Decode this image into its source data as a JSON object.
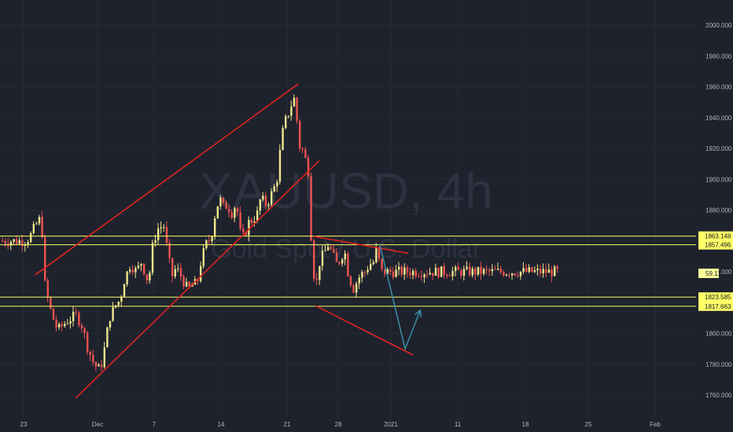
{
  "watermark": {
    "symbol": "XAUUSD, 4h",
    "description": "Gold Spot / U.S. Dollar"
  },
  "colors": {
    "background": "#1e222d",
    "grid": "#262a35",
    "up": "#f0e68c",
    "down": "#ef5350",
    "trendline": "#e0241e",
    "level": "#ffff66",
    "projection": "#3a8fa8",
    "axis_text": "#b2b5be",
    "current_price": "#ffff99"
  },
  "chart_data": {
    "type": "candlestick",
    "title": "",
    "y_axis": {
      "min": 1750,
      "max": 2010,
      "position": "right",
      "ticks": [
        "1760.000",
        "1780.000",
        "1800.000",
        "1820.000",
        "1840.000",
        "1860.000",
        "1880.000",
        "1900.000",
        "1920.000",
        "1940.000",
        "1960.000",
        "1980.000",
        "2000.000"
      ]
    },
    "x_axis": {
      "ticks": [
        "23",
        "Dec",
        "7",
        "14",
        "21",
        "28",
        "2021",
        "11",
        "18",
        "25",
        "Feb"
      ]
    },
    "grid": true,
    "horizontal_levels": [
      {
        "value": 1863.148,
        "label": "1863.148"
      },
      {
        "value": 1857.496,
        "label": "1857.496"
      },
      {
        "value": 1823.585,
        "label": "1823.585"
      },
      {
        "value": 1817.663,
        "label": "1817.663"
      }
    ],
    "current_price_tag": "59.11",
    "current_price_value": 1839,
    "price_path": [
      [
        0,
        1860
      ],
      [
        0.08,
        1862
      ],
      [
        0.18,
        1870
      ],
      [
        0.25,
        1874
      ],
      [
        0.29,
        1866
      ],
      [
        0.34,
        1830
      ],
      [
        0.45,
        1812
      ],
      [
        0.55,
        1802
      ],
      [
        0.7,
        1808
      ],
      [
        0.85,
        1812
      ],
      [
        0.95,
        1805
      ],
      [
        1.05,
        1790
      ],
      [
        1.15,
        1780
      ],
      [
        1.25,
        1776
      ],
      [
        1.32,
        1790
      ],
      [
        1.4,
        1810
      ],
      [
        1.5,
        1818
      ],
      [
        1.58,
        1822
      ],
      [
        1.65,
        1835
      ],
      [
        1.75,
        1845
      ],
      [
        1.85,
        1840
      ],
      [
        1.95,
        1848
      ],
      [
        2.0,
        1834
      ],
      [
        2.07,
        1840
      ],
      [
        2.12,
        1858
      ],
      [
        2.2,
        1868
      ],
      [
        2.3,
        1870
      ],
      [
        2.38,
        1848
      ],
      [
        2.45,
        1836
      ],
      [
        2.5,
        1843
      ],
      [
        2.6,
        1836
      ],
      [
        2.7,
        1828
      ],
      [
        2.78,
        1832
      ],
      [
        2.85,
        1832
      ],
      [
        2.92,
        1848
      ],
      [
        3.0,
        1858
      ],
      [
        3.08,
        1862
      ],
      [
        3.15,
        1878
      ],
      [
        3.22,
        1888
      ],
      [
        3.28,
        1882
      ],
      [
        3.35,
        1883
      ],
      [
        3.42,
        1878
      ],
      [
        3.5,
        1885
      ],
      [
        3.55,
        1866
      ],
      [
        3.62,
        1862
      ],
      [
        3.7,
        1872
      ],
      [
        3.78,
        1874
      ],
      [
        3.85,
        1878
      ],
      [
        3.9,
        1888
      ],
      [
        4.0,
        1883
      ],
      [
        4.05,
        1888
      ],
      [
        4.12,
        1894
      ],
      [
        4.18,
        1902
      ],
      [
        4.22,
        1918
      ],
      [
        4.28,
        1935
      ],
      [
        4.35,
        1942
      ],
      [
        4.42,
        1950
      ],
      [
        4.48,
        1954
      ],
      [
        4.52,
        1920
      ],
      [
        4.56,
        1922
      ],
      [
        4.6,
        1918
      ],
      [
        4.66,
        1910
      ],
      [
        4.7,
        1903
      ],
      [
        4.72,
        1878
      ],
      [
        4.74,
        1855
      ],
      [
        4.78,
        1838
      ],
      [
        4.82,
        1832
      ],
      [
        4.88,
        1848
      ],
      [
        4.95,
        1852
      ],
      [
        5.02,
        1858
      ],
      [
        5.08,
        1852
      ],
      [
        5.15,
        1845
      ],
      [
        5.22,
        1848
      ],
      [
        5.28,
        1855
      ],
      [
        5.34,
        1840
      ],
      [
        5.38,
        1835
      ],
      [
        5.42,
        1828
      ],
      [
        5.48,
        1833
      ],
      [
        5.55,
        1838
      ],
      [
        5.62,
        1840
      ],
      [
        5.7,
        1845
      ],
      [
        5.76,
        1846
      ],
      [
        5.82,
        1856
      ],
      [
        5.84,
        1852
      ],
      [
        5.86,
        1845
      ],
      [
        5.88,
        1840
      ]
    ],
    "trendlines": [
      {
        "name": "channel-upper",
        "points": [
          [
            0.19,
            1838
          ],
          [
            4.54,
            1962
          ]
        ]
      },
      {
        "name": "channel-lower",
        "points": [
          [
            0.86,
            1758
          ],
          [
            4.88,
            1912
          ]
        ]
      },
      {
        "name": "descending-resistance",
        "points": [
          [
            4.79,
            1863
          ],
          [
            6.35,
            1852
          ]
        ]
      },
      {
        "name": "descending-support",
        "points": [
          [
            4.82,
            1818
          ],
          [
            6.43,
            1786
          ]
        ]
      }
    ],
    "projection": {
      "points": [
        [
          5.88,
          1858
        ],
        [
          6.3,
          1790
        ],
        [
          6.55,
          1815
        ]
      ]
    }
  }
}
